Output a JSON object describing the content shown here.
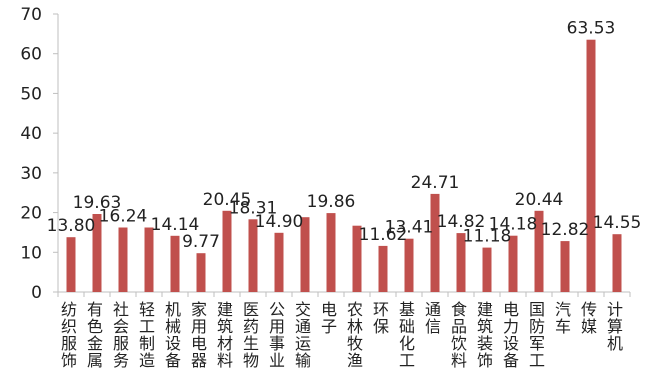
{
  "chart_data": {
    "type": "bar",
    "categories": [
      "纺织服饰",
      "有色金属",
      "社会服务",
      "轻工制造",
      "机械设备",
      "家用电器",
      "建筑材料",
      "医药生物",
      "公用事业",
      "交通运输",
      "电子",
      "农林牧渔",
      "环保",
      "基础化工",
      "通信",
      "食品饮料",
      "建筑装饰",
      "电力设备",
      "国防军工",
      "汽车",
      "传媒",
      "计算机"
    ],
    "values": [
      13.8,
      19.63,
      16.24,
      16.24,
      14.14,
      9.77,
      20.45,
      18.31,
      14.9,
      18.83,
      19.86,
      16.7,
      11.62,
      13.41,
      24.71,
      14.82,
      11.18,
      14.18,
      20.44,
      12.82,
      63.53,
      14.55
    ],
    "data_labels": [
      "13.80",
      "19.63",
      "16.24",
      "",
      "14.14",
      "9.77",
      "20.45",
      "18.31",
      "14.90",
      "",
      "19.86",
      "",
      "11.62",
      "13.41",
      "24.71",
      "14.82",
      "11.18",
      "14.18",
      "20.44",
      "12.82",
      "63.53",
      "14.55"
    ],
    "y_ticks": [
      "0",
      "10",
      "20",
      "30",
      "40",
      "50",
      "60",
      "70"
    ],
    "ylim": [
      0,
      70
    ],
    "bar_color": "#c0504d",
    "axis_color": "#bfbfbf",
    "grid": false,
    "legend": "none"
  }
}
